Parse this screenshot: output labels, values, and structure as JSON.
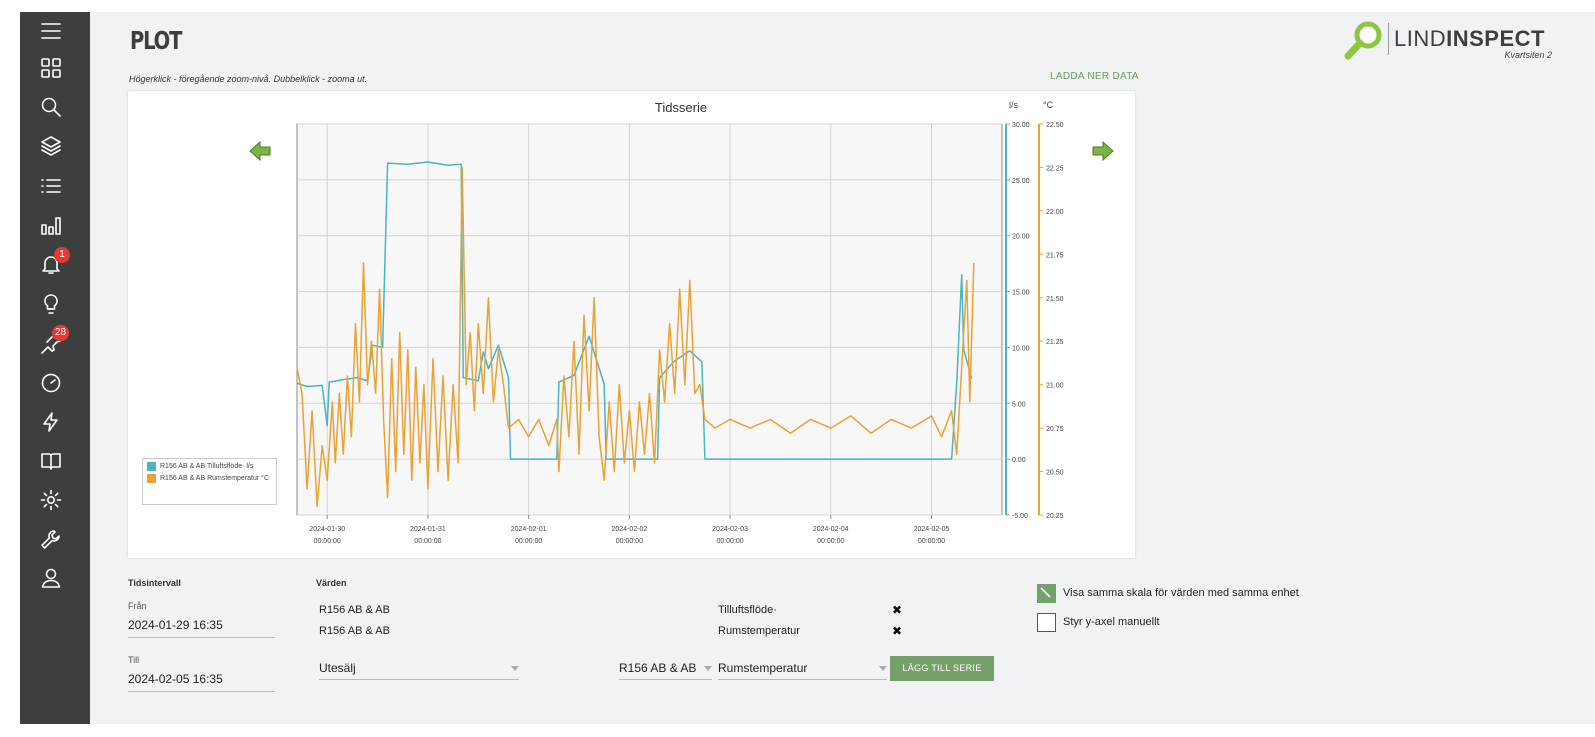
{
  "page": {
    "title": "PLOT",
    "hint": "Högerklick - föregående zoom-nivå. Dubbelklick - zooma ut.",
    "download_label": "LADDA NER DATA"
  },
  "logo": {
    "brand_light": "LIND",
    "brand_bold": "INSPECT",
    "subtitle": "Kvartsiten 2"
  },
  "sidebar": {
    "items": [
      {
        "icon": "menu-icon"
      },
      {
        "icon": "dashboard-icon"
      },
      {
        "icon": "search-icon"
      },
      {
        "icon": "layers-icon"
      },
      {
        "icon": "list-icon"
      },
      {
        "icon": "bar-chart-icon"
      },
      {
        "icon": "bell-icon",
        "badge": "1"
      },
      {
        "icon": "lightbulb-icon"
      },
      {
        "icon": "pin-icon",
        "badge": "28"
      },
      {
        "icon": "gauge-icon"
      },
      {
        "icon": "bolt-icon"
      },
      {
        "icon": "book-icon"
      },
      {
        "icon": "gear-icon"
      },
      {
        "icon": "wrench-icon"
      },
      {
        "icon": "user-icon"
      }
    ]
  },
  "controls": {
    "time_interval_label": "Tidsintervall",
    "from_label": "Från",
    "from_value": "2024-01-29 16:35",
    "to_label": "Till",
    "to_value": "2024-02-05 16:35",
    "values_label": "Värden",
    "series_rows": [
      {
        "object": "R156 AB & AB",
        "quantity": "Tilluftsflöde·"
      },
      {
        "object": "R156 AB & AB",
        "quantity": "Rumstemperatur"
      }
    ],
    "outdoor_select": "Utesälj",
    "object_select": "R156 AB & AB",
    "quantity_select": "Rumstemperatur",
    "add_series_label": "LÄGG TILL SERIE",
    "same_scale_label": "Visa samma skala för värden med samma enhet",
    "same_scale_checked": true,
    "manual_y_label": "Styr y-axel manuellt",
    "manual_y_checked": false
  },
  "colors": {
    "flow": "#4ab3c4",
    "temp": "#e8a236",
    "accent": "#76a06a",
    "sidebar": "#3d3f3e"
  },
  "chart_data": {
    "type": "line",
    "title": "Tidsserie",
    "x_ticks": [
      {
        "date": "2024-01-30",
        "time": "00:00:00"
      },
      {
        "date": "2024-01-31",
        "time": "00:00:00"
      },
      {
        "date": "2024-02-01",
        "time": "00:00:00"
      },
      {
        "date": "2024-02-02",
        "time": "00:00:00"
      },
      {
        "date": "2024-02-03",
        "time": "00:00:00"
      },
      {
        "date": "2024-02-04",
        "time": "00:00:00"
      },
      {
        "date": "2024-02-05",
        "time": "00:00:00"
      }
    ],
    "x_range_days": [
      -0.3,
      6.7
    ],
    "y_left": {
      "unit": "l/s",
      "min": -5,
      "max": 30,
      "ticks": [
        "30.00",
        "25.00",
        "20.00",
        "15.00",
        "10.00",
        "5.00",
        "0.00",
        "-5.00"
      ]
    },
    "y_right": {
      "unit": "°C",
      "min": 20.25,
      "max": 22.5,
      "ticks": [
        "22.50",
        "22.25",
        "22.00",
        "21.75",
        "21.50",
        "21.25",
        "21.00",
        "20.75",
        "20.50",
        "20.25"
      ]
    },
    "series": [
      {
        "name": "R156 AB & AB Tilluftsflöde· l/s",
        "axis": "left",
        "points": [
          [
            -0.3,
            6.8
          ],
          [
            -0.2,
            6.5
          ],
          [
            -0.05,
            6.6
          ],
          [
            0.0,
            3.0
          ],
          [
            0.02,
            6.9
          ],
          [
            0.15,
            7.1
          ],
          [
            0.3,
            7.3
          ],
          [
            0.4,
            7.0
          ],
          [
            0.45,
            10.2
          ],
          [
            0.55,
            10.0
          ],
          [
            0.6,
            26.5
          ],
          [
            0.8,
            26.4
          ],
          [
            1.0,
            26.6
          ],
          [
            1.2,
            26.3
          ],
          [
            1.33,
            26.4
          ],
          [
            1.35,
            7.3
          ],
          [
            1.5,
            7.0
          ],
          [
            1.55,
            9.6
          ],
          [
            1.6,
            8.1
          ],
          [
            1.7,
            10.2
          ],
          [
            1.8,
            7.3
          ],
          [
            1.82,
            0.0
          ],
          [
            2.28,
            0.0
          ],
          [
            2.3,
            6.9
          ],
          [
            2.45,
            7.5
          ],
          [
            2.6,
            11.0
          ],
          [
            2.75,
            6.7
          ],
          [
            2.77,
            0.0
          ],
          [
            3.28,
            0.0
          ],
          [
            3.3,
            7.3
          ],
          [
            3.45,
            8.8
          ],
          [
            3.6,
            9.7
          ],
          [
            3.72,
            8.7
          ],
          [
            3.75,
            0.0
          ],
          [
            6.2,
            0.0
          ],
          [
            6.25,
            6.8
          ],
          [
            6.3,
            16.5
          ],
          [
            6.32,
            9.8
          ],
          [
            6.4,
            7.2
          ]
        ]
      },
      {
        "name": "R156 AB & AB Rumstemperatur °C",
        "axis": "right",
        "points": [
          [
            -0.3,
            21.1
          ],
          [
            -0.25,
            20.95
          ],
          [
            -0.2,
            20.4
          ],
          [
            -0.15,
            20.85
          ],
          [
            -0.1,
            20.3
          ],
          [
            -0.05,
            20.65
          ],
          [
            0.0,
            20.45
          ],
          [
            0.05,
            20.9
          ],
          [
            0.08,
            20.55
          ],
          [
            0.12,
            20.95
          ],
          [
            0.16,
            20.6
          ],
          [
            0.2,
            21.05
          ],
          [
            0.24,
            20.7
          ],
          [
            0.28,
            21.35
          ],
          [
            0.32,
            20.9
          ],
          [
            0.36,
            21.7
          ],
          [
            0.4,
            21.0
          ],
          [
            0.44,
            21.25
          ],
          [
            0.48,
            20.95
          ],
          [
            0.52,
            21.55
          ],
          [
            0.56,
            20.8
          ],
          [
            0.6,
            20.35
          ],
          [
            0.64,
            21.15
          ],
          [
            0.68,
            20.5
          ],
          [
            0.72,
            21.3
          ],
          [
            0.76,
            20.6
          ],
          [
            0.8,
            21.2
          ],
          [
            0.84,
            20.45
          ],
          [
            0.88,
            21.1
          ],
          [
            0.92,
            20.55
          ],
          [
            0.96,
            21.0
          ],
          [
            1.0,
            20.4
          ],
          [
            1.05,
            21.15
          ],
          [
            1.1,
            20.5
          ],
          [
            1.15,
            21.05
          ],
          [
            1.2,
            20.45
          ],
          [
            1.25,
            21.0
          ],
          [
            1.3,
            20.55
          ],
          [
            1.34,
            22.25
          ],
          [
            1.38,
            21.0
          ],
          [
            1.42,
            21.3
          ],
          [
            1.46,
            20.85
          ],
          [
            1.5,
            21.35
          ],
          [
            1.55,
            20.95
          ],
          [
            1.6,
            21.5
          ],
          [
            1.65,
            20.9
          ],
          [
            1.7,
            21.2
          ],
          [
            1.75,
            21.0
          ],
          [
            1.8,
            20.75
          ],
          [
            1.9,
            20.8
          ],
          [
            2.0,
            20.7
          ],
          [
            2.1,
            20.8
          ],
          [
            2.2,
            20.65
          ],
          [
            2.28,
            20.8
          ],
          [
            2.3,
            20.5
          ],
          [
            2.35,
            21.05
          ],
          [
            2.4,
            20.7
          ],
          [
            2.45,
            21.25
          ],
          [
            2.5,
            20.6
          ],
          [
            2.55,
            21.4
          ],
          [
            2.6,
            20.85
          ],
          [
            2.65,
            21.5
          ],
          [
            2.7,
            20.7
          ],
          [
            2.75,
            20.45
          ],
          [
            2.8,
            20.9
          ],
          [
            2.85,
            20.5
          ],
          [
            2.9,
            21.0
          ],
          [
            2.95,
            20.55
          ],
          [
            3.0,
            20.85
          ],
          [
            3.05,
            20.5
          ],
          [
            3.1,
            20.9
          ],
          [
            3.15,
            20.6
          ],
          [
            3.2,
            20.95
          ],
          [
            3.25,
            20.55
          ],
          [
            3.3,
            21.2
          ],
          [
            3.35,
            20.9
          ],
          [
            3.4,
            21.35
          ],
          [
            3.45,
            20.95
          ],
          [
            3.5,
            21.55
          ],
          [
            3.55,
            21.0
          ],
          [
            3.6,
            21.6
          ],
          [
            3.65,
            20.95
          ],
          [
            3.7,
            21.0
          ],
          [
            3.75,
            20.8
          ],
          [
            3.85,
            20.75
          ],
          [
            4.0,
            20.8
          ],
          [
            4.2,
            20.75
          ],
          [
            4.4,
            20.8
          ],
          [
            4.6,
            20.72
          ],
          [
            4.8,
            20.8
          ],
          [
            5.0,
            20.75
          ],
          [
            5.2,
            20.82
          ],
          [
            5.4,
            20.72
          ],
          [
            5.6,
            20.8
          ],
          [
            5.8,
            20.75
          ],
          [
            6.0,
            20.82
          ],
          [
            6.1,
            20.7
          ],
          [
            6.2,
            20.85
          ],
          [
            6.25,
            20.6
          ],
          [
            6.3,
            21.1
          ],
          [
            6.35,
            21.6
          ],
          [
            6.38,
            20.9
          ],
          [
            6.42,
            21.7
          ]
        ]
      }
    ]
  }
}
